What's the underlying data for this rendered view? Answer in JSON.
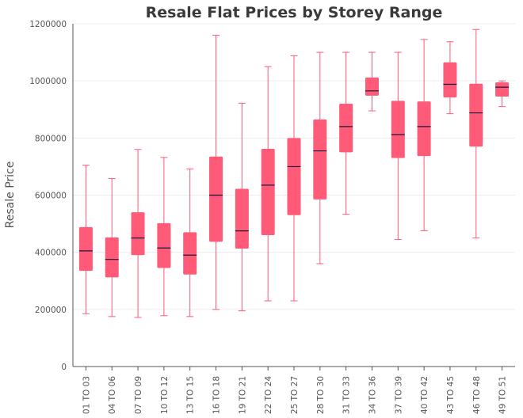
{
  "chart_data": {
    "type": "box",
    "title": "Resale Flat Prices by Storey Range",
    "xlabel": "",
    "ylabel": "Resale Price",
    "ylim": [
      0,
      1200000
    ],
    "yticks": [
      0,
      200000,
      400000,
      600000,
      800000,
      1000000,
      1200000
    ],
    "grid": true,
    "box_color": "#ff5a78",
    "median_color": "#1a1a3a",
    "categories": [
      "01 TO 03",
      "04 TO 06",
      "07 TO 09",
      "10 TO 12",
      "13 TO 15",
      "16 TO 18",
      "19 TO 21",
      "22 TO 24",
      "25 TO 27",
      "28 TO 30",
      "31 TO 33",
      "34 TO 36",
      "37 TO 39",
      "40 TO 42",
      "43 TO 45",
      "46 TO 48",
      "49 TO 51"
    ],
    "boxes": [
      {
        "min": 185000,
        "q1": 335000,
        "median": 405000,
        "q3": 488000,
        "max": 705000
      },
      {
        "min": 175000,
        "q1": 312000,
        "median": 375000,
        "q3": 452000,
        "max": 658000
      },
      {
        "min": 172000,
        "q1": 390000,
        "median": 450000,
        "q3": 540000,
        "max": 760000
      },
      {
        "min": 178000,
        "q1": 345000,
        "median": 415000,
        "q3": 502000,
        "max": 732000
      },
      {
        "min": 175000,
        "q1": 322000,
        "median": 390000,
        "q3": 470000,
        "max": 692000
      },
      {
        "min": 200000,
        "q1": 437000,
        "median": 600000,
        "q3": 735000,
        "max": 1160000
      },
      {
        "min": 195000,
        "q1": 413000,
        "median": 475000,
        "q3": 622000,
        "max": 922000
      },
      {
        "min": 230000,
        "q1": 460000,
        "median": 635000,
        "q3": 762000,
        "max": 1050000
      },
      {
        "min": 230000,
        "q1": 530000,
        "median": 700000,
        "q3": 800000,
        "max": 1088000
      },
      {
        "min": 360000,
        "q1": 585000,
        "median": 755000,
        "q3": 865000,
        "max": 1100000
      },
      {
        "min": 533000,
        "q1": 750000,
        "median": 840000,
        "q3": 920000,
        "max": 1100000
      },
      {
        "min": 895000,
        "q1": 948000,
        "median": 965000,
        "q3": 1012000,
        "max": 1100000
      },
      {
        "min": 445000,
        "q1": 730000,
        "median": 812000,
        "q3": 930000,
        "max": 1100000
      },
      {
        "min": 475000,
        "q1": 737000,
        "median": 840000,
        "q3": 928000,
        "max": 1145000
      },
      {
        "min": 885000,
        "q1": 942000,
        "median": 988000,
        "q3": 1065000,
        "max": 1137000
      },
      {
        "min": 450000,
        "q1": 770000,
        "median": 888000,
        "q3": 990000,
        "max": 1180000
      },
      {
        "min": 910000,
        "q1": 945000,
        "median": 978000,
        "q3": 995000,
        "max": 1000000
      }
    ]
  }
}
